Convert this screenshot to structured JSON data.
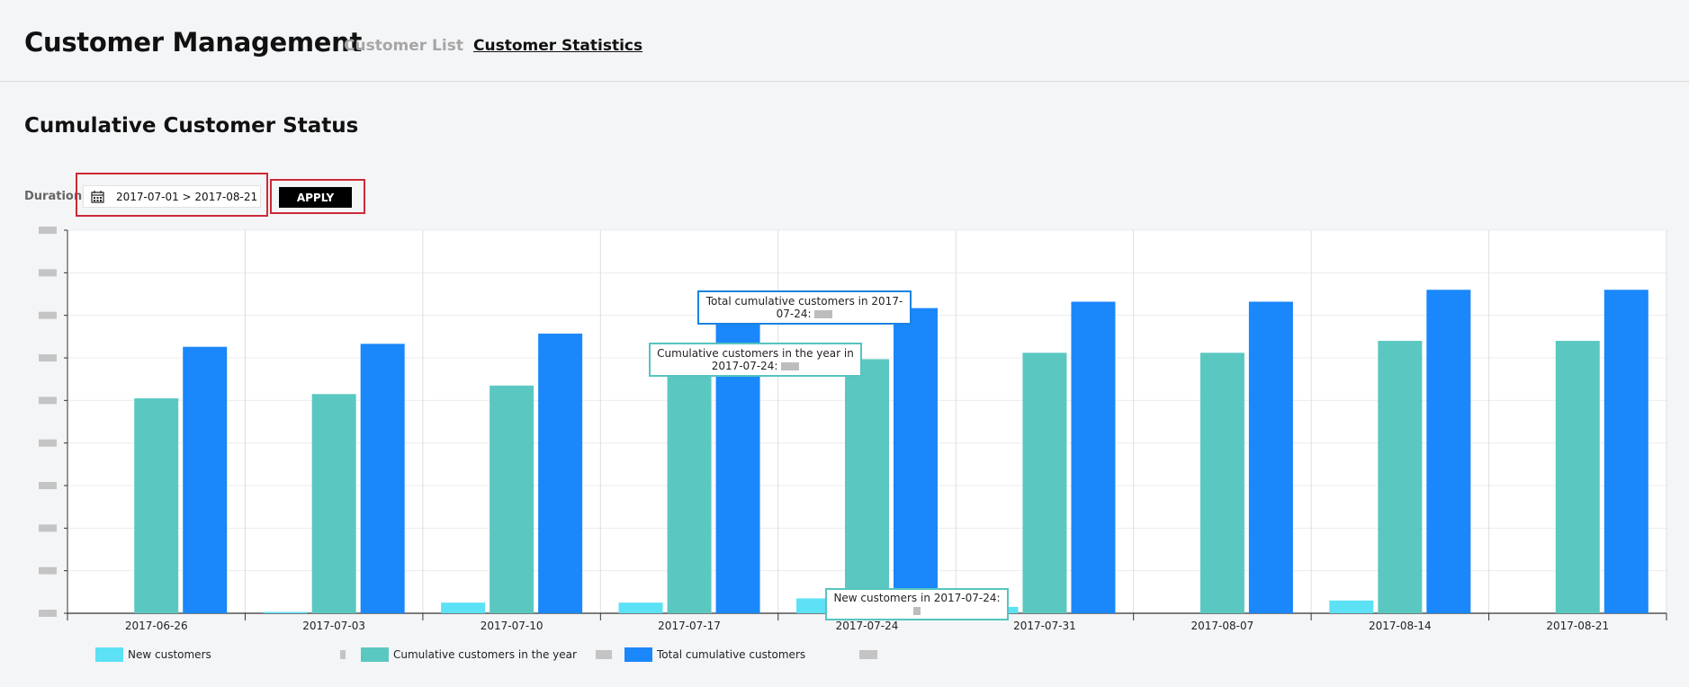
{
  "app": {
    "title": "Customer Management",
    "tabs": [
      {
        "label": "Customer List",
        "active": false
      },
      {
        "label": "Customer Statistics",
        "active": true
      }
    ]
  },
  "section": {
    "title": "Cumulative Customer Status"
  },
  "filter": {
    "duration_label": "Duration",
    "date_range": "2017-07-01 > 2017-08-21",
    "apply_label": "APPLY",
    "icon": "calendar-icon"
  },
  "colors": {
    "new": "#5ce1f5",
    "year": "#5ac8c0",
    "total": "#1a87fa",
    "highlight": "#cc2a36"
  },
  "chart_data": {
    "type": "bar",
    "categories": [
      "2017-06-26",
      "2017-07-03",
      "2017-07-10",
      "2017-07-17",
      "2017-07-24",
      "2017-07-31",
      "2017-08-07",
      "2017-08-14",
      "2017-08-21"
    ],
    "series": [
      {
        "name": "New customers",
        "values": [
          0,
          0.3,
          2.5,
          2.5,
          3.5,
          1.5,
          0,
          3,
          0
        ]
      },
      {
        "name": "Cumulative customers in the year",
        "values": [
          50.5,
          51.5,
          53.5,
          59,
          59.7,
          61.2,
          61.2,
          64,
          64
        ]
      },
      {
        "name": "Total cumulative customers",
        "values": [
          62.6,
          63.3,
          65.7,
          71,
          71.7,
          73.2,
          73.2,
          76,
          76
        ]
      }
    ],
    "ylim": [
      0,
      90
    ],
    "grid": true,
    "legend": "bottom-left",
    "tooltips": {
      "total": "Total cumulative customers in 2017-07-24:",
      "year": "Cumulative customers in the year in 2017-07-24:",
      "new": "New customers in 2017-07-24:"
    }
  }
}
